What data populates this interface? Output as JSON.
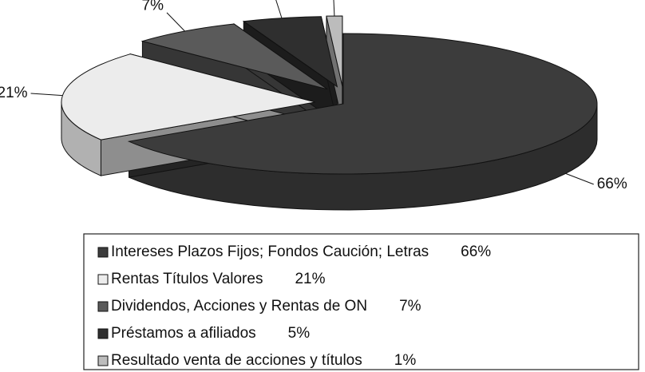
{
  "chart_data": {
    "type": "pie",
    "categories": [
      "Intereses Plazos Fijos; Fondos Caución; Letras",
      "Rentas Títulos Valores",
      "Dividendos, Acciones y Rentas de ON",
      "Préstamos a afiliados",
      "Resultado venta de acciones y títulos"
    ],
    "values": [
      66,
      21,
      7,
      5,
      1
    ],
    "value_labels": [
      "66%",
      "21%",
      "7%",
      "5%",
      "1%"
    ],
    "colors": [
      "#3c3c3c",
      "#ececec",
      "#5a5a5a",
      "#2f2f2f",
      "#bcbcbc"
    ],
    "legend": "bottom"
  }
}
